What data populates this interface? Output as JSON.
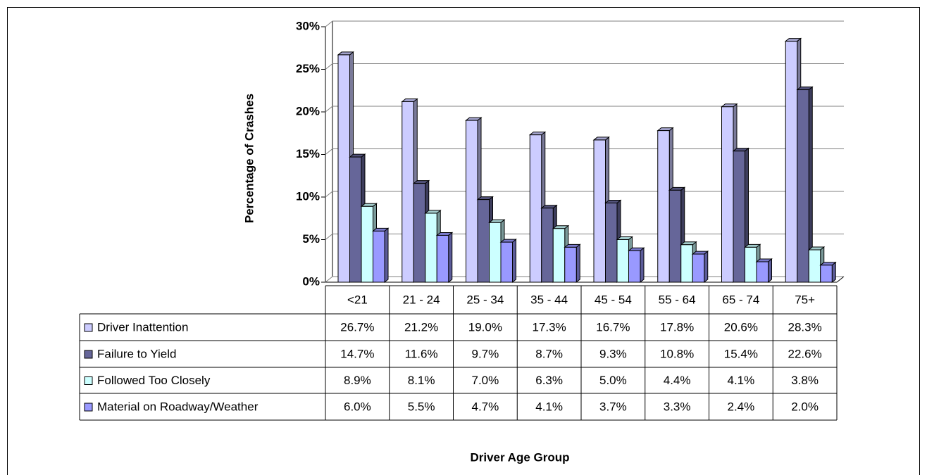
{
  "chart_data": {
    "type": "bar",
    "ylabel": "Percentage of Crashes",
    "xlabel": "Driver Age Group",
    "categories": [
      "<21",
      "21 - 24",
      "25 - 34",
      "35 - 44",
      "45 - 54",
      "55 - 64",
      "65 - 74",
      "75+"
    ],
    "series": [
      {
        "name": "Driver Inattention",
        "color": "#ccccff",
        "values": [
          26.7,
          21.2,
          19.0,
          17.3,
          16.7,
          17.8,
          20.6,
          28.3
        ],
        "value_labels": [
          "26.7%",
          "21.2%",
          "19.0%",
          "17.3%",
          "16.7%",
          "17.8%",
          "20.6%",
          "28.3%"
        ]
      },
      {
        "name": "Failure to Yield",
        "color": "#666699",
        "values": [
          14.7,
          11.6,
          9.7,
          8.7,
          9.3,
          10.8,
          15.4,
          22.6
        ],
        "value_labels": [
          "14.7%",
          "11.6%",
          "9.7%",
          "8.7%",
          "9.3%",
          "10.8%",
          "15.4%",
          "22.6%"
        ]
      },
      {
        "name": "Followed Too Closely",
        "color": "#ccffff",
        "values": [
          8.9,
          8.1,
          7.0,
          6.3,
          5.0,
          4.4,
          4.1,
          3.8
        ],
        "value_labels": [
          "8.9%",
          "8.1%",
          "7.0%",
          "6.3%",
          "5.0%",
          "4.4%",
          "4.1%",
          "3.8%"
        ]
      },
      {
        "name": "Material on Roadway/Weather",
        "color": "#9999ff",
        "values": [
          6.0,
          5.5,
          4.7,
          4.1,
          3.7,
          3.3,
          2.4,
          2.0
        ],
        "value_labels": [
          "6.0%",
          "5.5%",
          "4.7%",
          "4.1%",
          "3.7%",
          "3.3%",
          "2.4%",
          "2.0%"
        ]
      }
    ],
    "ylim": [
      0,
      30
    ],
    "yticks": [
      {
        "value": 0,
        "label": "0%"
      },
      {
        "value": 5,
        "label": "5%"
      },
      {
        "value": 10,
        "label": "10%"
      },
      {
        "value": 15,
        "label": "15%"
      },
      {
        "value": 20,
        "label": "20%"
      },
      {
        "value": 25,
        "label": "25%"
      },
      {
        "value": 30,
        "label": "30%"
      }
    ],
    "grid": true
  }
}
